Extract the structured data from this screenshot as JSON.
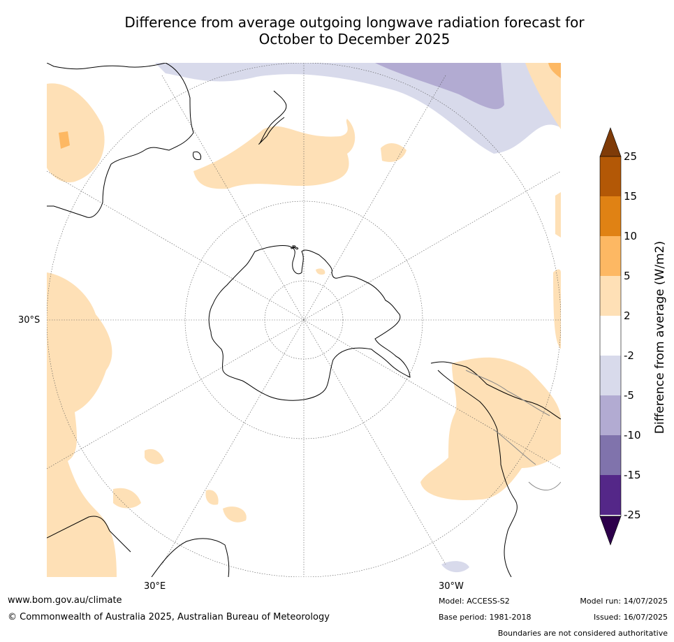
{
  "title_line1": "Difference from average outgoing longwave radiation forecast for",
  "title_line2": "October to December 2025",
  "map": {
    "lat_label": "30°S",
    "lon_labels": {
      "east": "30°E",
      "west": "30°W"
    }
  },
  "colorbar": {
    "title": "Difference from average (W/m2)",
    "tick_labels": [
      "25",
      "15",
      "10",
      "5",
      "2",
      "-2",
      "-5",
      "-10",
      "-15",
      "-25"
    ],
    "colors": {
      "over": "#7f3b08",
      "15_25": "#b35806",
      "10_15": "#e08214",
      "5_10": "#fdb863",
      "2_5": "#fee0b6",
      "m2_2": "#ffffff",
      "m5_m2": "#d8daeb",
      "m10_m5": "#b2abd2",
      "m15_m10": "#8073ac",
      "m25_m15": "#542788",
      "under": "#2d004b"
    }
  },
  "footer": {
    "url": "www.bom.gov.au/climate",
    "copyright": "© Commonwealth of Australia 2025, Australian Bureau of Meteorology",
    "model": "Model: ACCESS-S2",
    "base_period": "Base period: 1981-2018",
    "model_run": "Model run: 14/07/2025",
    "issued": "Issued: 16/07/2025",
    "disclaimer": "Boundaries are not considered authoritative"
  }
}
